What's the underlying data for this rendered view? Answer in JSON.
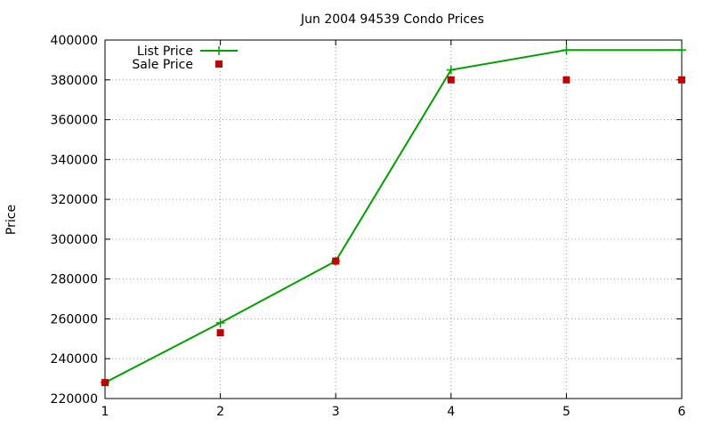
{
  "chart_data": {
    "type": "line",
    "title": "Jun 2004 94539 Condo Prices",
    "xlabel": "",
    "ylabel": "Price",
    "x": [
      1,
      2,
      3,
      4,
      5,
      6
    ],
    "xlim": [
      1,
      6
    ],
    "ylim": [
      220000,
      400000
    ],
    "xticks": [
      1,
      2,
      3,
      4,
      5,
      6
    ],
    "yticks": [
      220000,
      240000,
      260000,
      280000,
      300000,
      320000,
      340000,
      360000,
      380000,
      400000
    ],
    "grid": true,
    "legend_position": "top-left",
    "series": [
      {
        "name": "List Price",
        "style": "line-points",
        "marker": "plus",
        "color": "#00a000",
        "values": [
          228000,
          258000,
          289000,
          385000,
          395000,
          395000
        ]
      },
      {
        "name": "Sale Price",
        "style": "points",
        "marker": "square",
        "color": "#c00000",
        "values": [
          228000,
          253000,
          289000,
          380000,
          380000,
          380000
        ]
      }
    ]
  }
}
